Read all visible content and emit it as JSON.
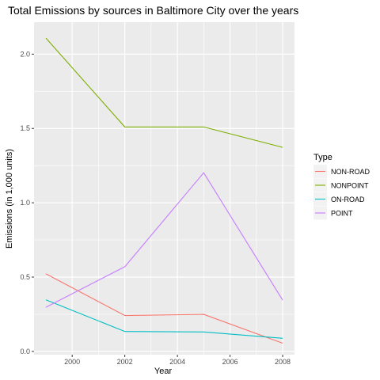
{
  "chart_data": {
    "type": "line",
    "title": "Total Emissions by sources in Baltimore City over the years",
    "xlabel": "Year",
    "ylabel": "Emissions (in 1,000 units)",
    "x": [
      1999,
      2002,
      2005,
      2008
    ],
    "xlim": [
      1998.55,
      2008.45
    ],
    "ylim": [
      -0.022,
      2.215
    ],
    "x_ticks": [
      2000,
      2002,
      2004,
      2006,
      2008
    ],
    "x_tick_labels": [
      "2000",
      "2002",
      "2004",
      "2006",
      "2008"
    ],
    "y_ticks": [
      0,
      0.5,
      1,
      1.5,
      2
    ],
    "y_tick_labels": [
      "0.0",
      "0.5",
      "1.0",
      "1.5",
      "2.0"
    ],
    "grid": true,
    "legend": {
      "title": "Type",
      "position": "right"
    },
    "series": [
      {
        "name": "NON-ROAD",
        "color": "#F8766D",
        "values": [
          0.522,
          0.241,
          0.249,
          0.055
        ]
      },
      {
        "name": "NONPOINT",
        "color": "#7CAE00",
        "values": [
          2.108,
          1.51,
          1.51,
          1.373
        ]
      },
      {
        "name": "ON-ROAD",
        "color": "#00BFC4",
        "values": [
          0.347,
          0.134,
          0.131,
          0.088
        ]
      },
      {
        "name": "POINT",
        "color": "#C77CFF",
        "values": [
          0.297,
          0.57,
          1.202,
          0.345
        ]
      }
    ]
  }
}
